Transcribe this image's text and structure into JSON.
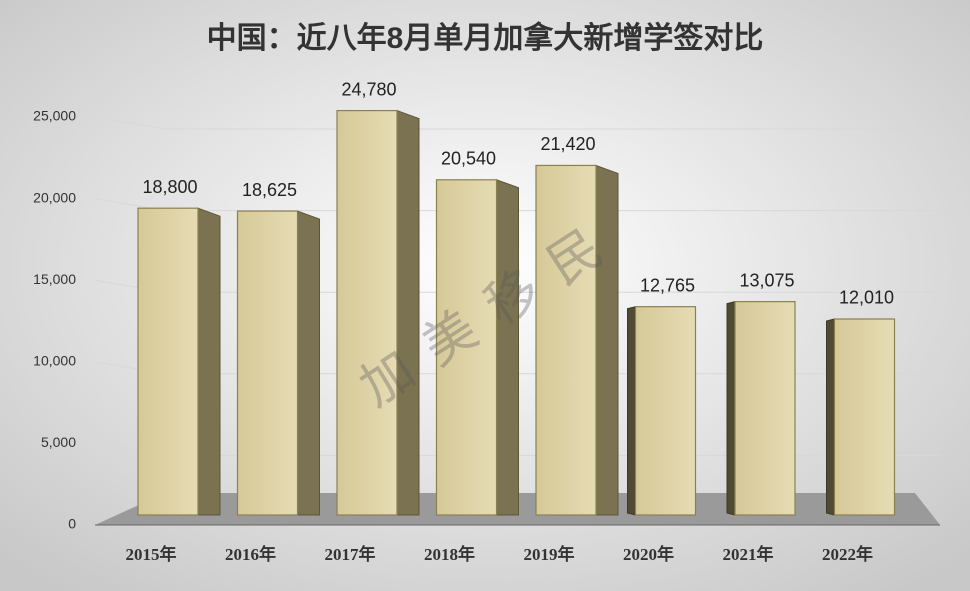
{
  "chart_data": {
    "type": "bar",
    "title": "中国：近八年8月单月加拿大新增学签对比",
    "watermark": "加 美 移 民",
    "categories": [
      "2015年",
      "2016年",
      "2017年",
      "2018年",
      "2019年",
      "2020年",
      "2021年",
      "2022年"
    ],
    "values": [
      18800,
      18625,
      24780,
      20540,
      21420,
      12765,
      13075,
      12010
    ],
    "value_labels": [
      "18,800",
      "18,625",
      "24,780",
      "20,540",
      "21,420",
      "12,765",
      "13,075",
      "12,010"
    ],
    "color": "#d8cc9c",
    "ylim": [
      0,
      25000
    ],
    "yticks": [
      0,
      {
        "value": 5000,
        "label": "5,000"
      },
      {
        "value": 10000,
        "label": "10,000"
      },
      {
        "value": 15000,
        "label": "15,000"
      },
      {
        "value": 20000,
        "label": "20,000"
      },
      {
        "value": 25000,
        "label": "25,000"
      }
    ],
    "grid": true
  }
}
